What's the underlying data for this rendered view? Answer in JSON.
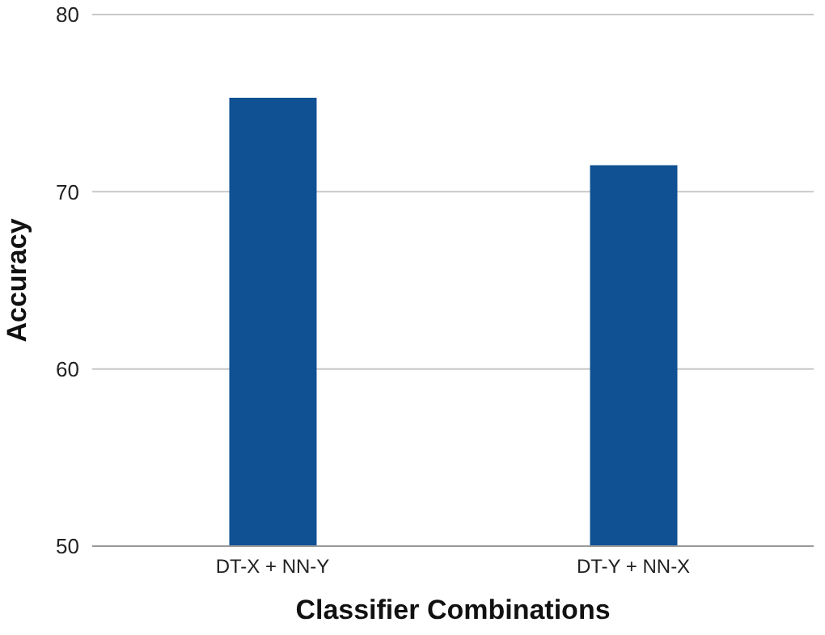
{
  "chart_data": {
    "type": "bar",
    "xlabel": "Classifier Combinations",
    "ylabel": "Accuracy",
    "categories": [
      "DT-X + NN-Y",
      "DT-Y + NN-X"
    ],
    "values": [
      75.3,
      71.5
    ],
    "color": "#0f5193",
    "ylim": [
      50,
      80
    ],
    "yticks": [
      50,
      60,
      70,
      80
    ],
    "grid": "y"
  }
}
